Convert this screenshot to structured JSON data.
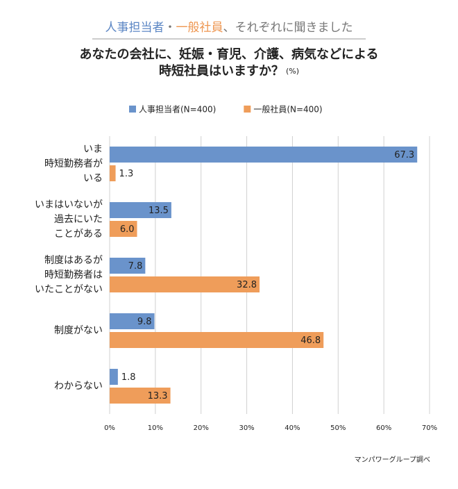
{
  "chart_data": {
    "type": "hbar",
    "subtitle_parts": [
      {
        "text": "人事担当者",
        "color": "#5b86c4"
      },
      {
        "text": "・",
        "color": "#777777"
      },
      {
        "text": "一般社員",
        "color": "#ee9650"
      },
      {
        "text": "、それぞれに聞きました",
        "color": "#777777"
      }
    ],
    "title_lines": [
      "あなたの会社に、妊娠・育児、介護、病気などによる",
      "時短社員はいますか？"
    ],
    "unit": "(%)",
    "categories": [
      "いま\n時短勤務者が\nいる",
      "いまはいないが\n過去にいた\nことがある",
      "制度はあるが\n時短勤務者は\nいたことがない",
      "制度がない",
      "わからない"
    ],
    "series": [
      {
        "name": "人事担当者(N=400)",
        "color": "#6a93cb",
        "values": [
          67.3,
          13.5,
          7.8,
          9.8,
          1.8
        ],
        "value_labels": [
          "67.3",
          "13.5",
          "7.8",
          "9.8",
          "1.8"
        ]
      },
      {
        "name": "一般社員(N=400)",
        "color": "#ef9d5a",
        "values": [
          1.3,
          6,
          32.8,
          46.8,
          13.3
        ],
        "value_labels": [
          "1.3",
          "6.0",
          "32.8",
          "46.8",
          "13.3"
        ]
      }
    ],
    "xlim": [
      0,
      70
    ],
    "xticks": [
      {
        "value": 0,
        "label": "0%"
      },
      {
        "value": 10,
        "label": "10%"
      },
      {
        "value": 20,
        "label": "20%"
      },
      {
        "value": 30,
        "label": "30%"
      },
      {
        "value": 40,
        "label": "40%"
      },
      {
        "value": 50,
        "label": "50%"
      },
      {
        "value": 60,
        "label": "60%"
      },
      {
        "value": 70,
        "label": "70%"
      }
    ],
    "grid": true,
    "source": "マンパワーグループ調べ"
  }
}
